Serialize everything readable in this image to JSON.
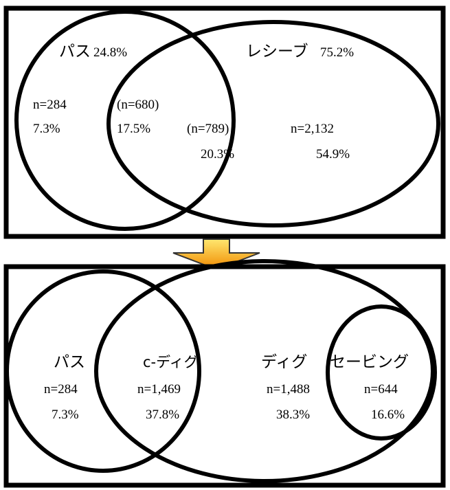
{
  "top_diagram": {
    "pass_label": "パス",
    "pass_pct": "24.8%",
    "receive_label": "レシーブ",
    "receive_pct": "75.2%",
    "pass_only_n": "n=284",
    "pass_only_pct": "7.3%",
    "overlap_a_n": "(n=680)",
    "overlap_a_pct": "17.5%",
    "overlap_b_n": "(n=789)",
    "overlap_b_pct": "20.3%",
    "receive_only_n": "n=2,132",
    "receive_only_pct": "54.9%"
  },
  "bottom_diagram": {
    "pass_label": "パス",
    "pass_n": "n=284",
    "pass_pct": "7.3%",
    "cdig_label": "c-ディグ",
    "cdig_n": "n=1,469",
    "cdig_pct": "37.8%",
    "dig_label": "ディグ",
    "dig_n": "n=1,488",
    "dig_pct": "38.3%",
    "saving_label": "セービング",
    "saving_n": "n=644",
    "saving_pct": "16.6%"
  },
  "colors": {
    "arrow_top": "#ffe870",
    "arrow_bottom": "#f08a00",
    "arrow_outline": "#333333",
    "stroke": "#000000"
  }
}
